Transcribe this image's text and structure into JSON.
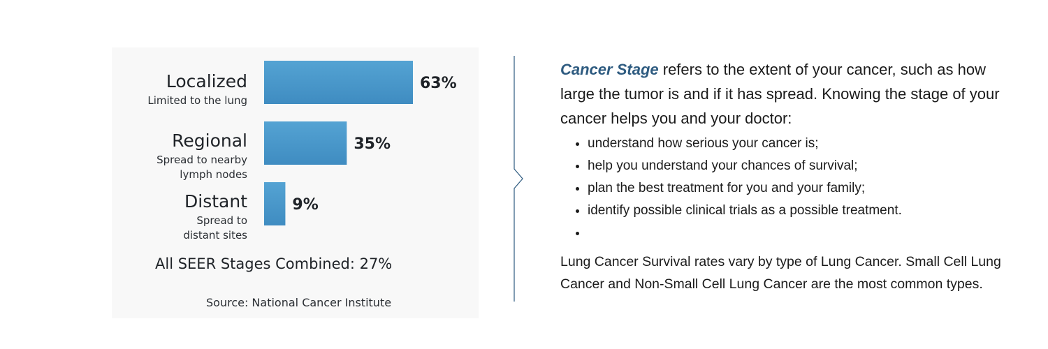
{
  "chart_data": {
    "type": "bar",
    "orientation": "horizontal",
    "categories": [
      "Localized",
      "Regional",
      "Distant"
    ],
    "category_descriptions": [
      "Limited to the lung",
      "Spread to nearby lymph nodes",
      "Spread to distant sites"
    ],
    "values": [
      63,
      35,
      9
    ],
    "value_labels": [
      "63%",
      "35%",
      "9%"
    ],
    "xlim": [
      0,
      100
    ],
    "grid": false,
    "legend": "none",
    "bar_color": "#4a98cb",
    "summary": "All SEER Stages Combined: 27%",
    "source": "Source: National Cancer Institute"
  },
  "text_panel": {
    "term": "Cancer Stage",
    "intro_rest": " refers to the extent of your cancer, such as how large the tumor is and if it has spread. Knowing the stage of your cancer helps you and your doctor:",
    "bullets": [
      "understand how serious your cancer is;",
      "help you understand your chances of survival;",
      "plan the best treatment for you and your family;",
      "identify possible clinical trials as a possible treatment.",
      ""
    ],
    "closing": "Lung Cancer Survival rates vary by type of Lung Cancer. Small Cell Lung Cancer and Non-Small Cell Lung Cancer are the most common types."
  },
  "colors": {
    "bar": "#4a98cb",
    "term": "#2e5b80",
    "divider": "#2e5b80"
  }
}
